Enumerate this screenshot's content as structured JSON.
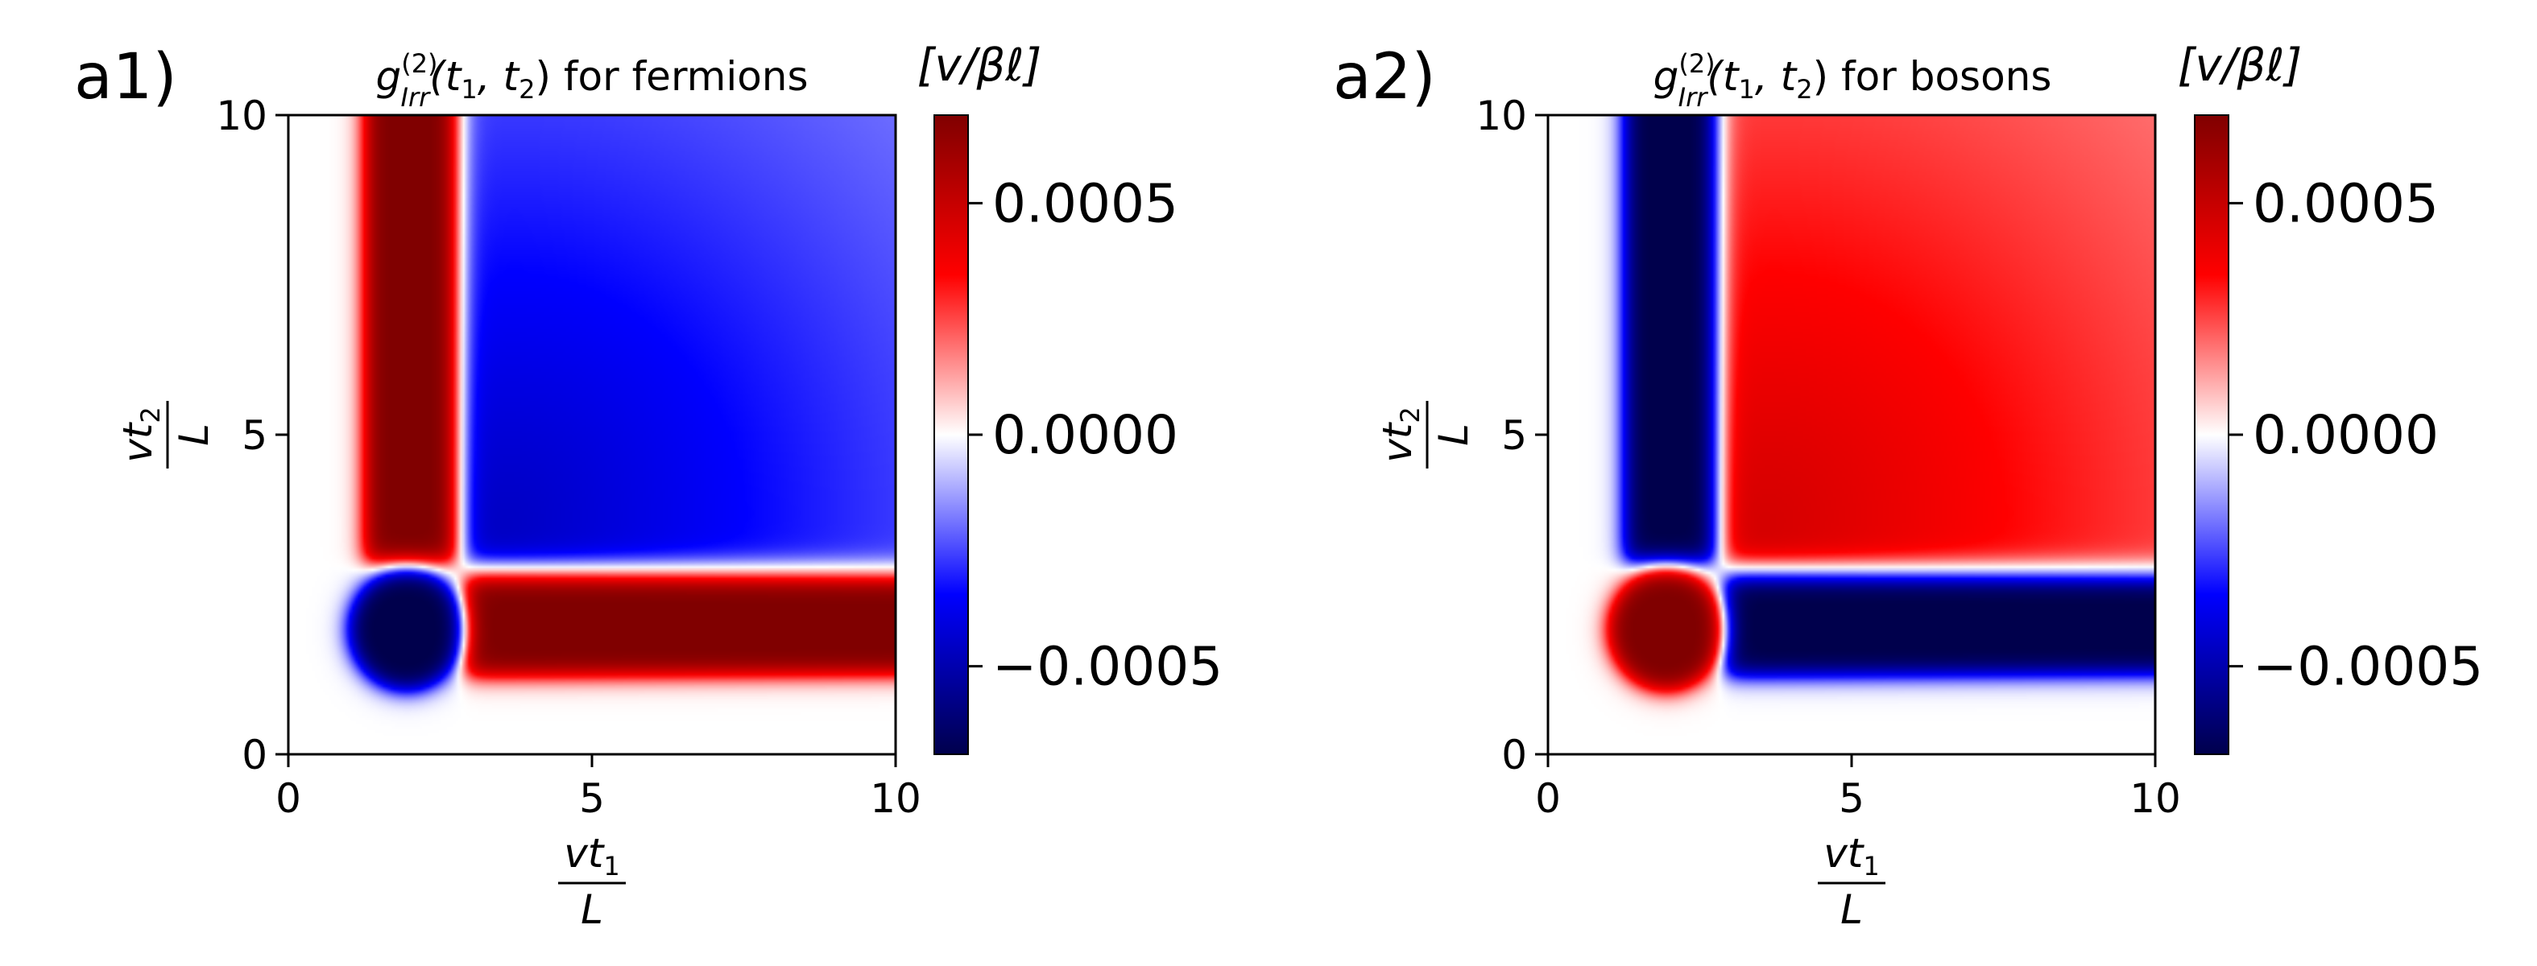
{
  "chart_data": [
    {
      "type": "heatmap",
      "panel_label": "a1)",
      "title": {
        "lead": "g",
        "sub": "Irr",
        "sup": "(2)",
        "args": "(t",
        "i1": "1",
        "comma": ", t",
        "i2": "2",
        "tail": ") for fermions"
      },
      "xlabel": {
        "num": "vt",
        "num_sub": "1",
        "den": "L"
      },
      "ylabel": {
        "num": "vt",
        "num_sub": "2",
        "den": "L"
      },
      "xlim": [
        0,
        10
      ],
      "ylim": [
        0,
        10
      ],
      "xticks": [
        {
          "v": 0,
          "label": "0"
        },
        {
          "v": 5,
          "label": "5"
        },
        {
          "v": 10,
          "label": "10"
        }
      ],
      "yticks": [
        {
          "v": 0,
          "label": "0"
        },
        {
          "v": 5,
          "label": "5"
        },
        {
          "v": 10,
          "label": "10"
        }
      ],
      "colormap": "seismic",
      "sign": 1,
      "vlim": [
        -0.00069,
        0.00069
      ],
      "colorbar": {
        "unit": "[v/βℓ]",
        "ticks": [
          {
            "v": 0.0005,
            "label": "0.0005"
          },
          {
            "v": 0.0,
            "label": "0.0000"
          },
          {
            "v": -0.0005,
            "label": "−0.0005"
          }
        ]
      },
      "regions": [
        {
          "shape": "rect",
          "x": [
            1.25,
            2.75
          ],
          "y": [
            3.0,
            10.0
          ],
          "value": 0.0007
        },
        {
          "shape": "rect",
          "x": [
            2.9,
            10.0
          ],
          "y": [
            1.25,
            2.75
          ],
          "value": 0.0007
        },
        {
          "shape": "disc",
          "center": [
            1.95,
            1.95
          ],
          "radius": 0.95,
          "value": -0.0007
        },
        {
          "shape": "plateau",
          "x": [
            2.9,
            10.0
          ],
          "y": [
            3.0,
            10.0
          ],
          "value": -0.00045
        }
      ]
    },
    {
      "type": "heatmap",
      "panel_label": "a2)",
      "title": {
        "lead": "g",
        "sub": "Irr",
        "sup": "(2)",
        "args": "(t",
        "i1": "1",
        "comma": ", t",
        "i2": "2",
        "tail": ") for bosons"
      },
      "xlabel": {
        "num": "vt",
        "num_sub": "1",
        "den": "L"
      },
      "ylabel": {
        "num": "vt",
        "num_sub": "2",
        "den": "L"
      },
      "xlim": [
        0,
        10
      ],
      "ylim": [
        0,
        10
      ],
      "xticks": [
        {
          "v": 0,
          "label": "0"
        },
        {
          "v": 5,
          "label": "5"
        },
        {
          "v": 10,
          "label": "10"
        }
      ],
      "yticks": [
        {
          "v": 0,
          "label": "0"
        },
        {
          "v": 5,
          "label": "5"
        },
        {
          "v": 10,
          "label": "10"
        }
      ],
      "colormap": "seismic",
      "sign": -1,
      "vlim": [
        -0.00069,
        0.00069
      ],
      "colorbar": {
        "unit": "[v/βℓ]",
        "ticks": [
          {
            "v": 0.0005,
            "label": "0.0005"
          },
          {
            "v": 0.0,
            "label": "0.0000"
          },
          {
            "v": -0.0005,
            "label": "−0.0005"
          }
        ]
      },
      "regions": [
        {
          "shape": "rect",
          "x": [
            1.25,
            2.75
          ],
          "y": [
            3.0,
            10.0
          ],
          "value": -0.0007
        },
        {
          "shape": "rect",
          "x": [
            2.9,
            10.0
          ],
          "y": [
            1.25,
            2.75
          ],
          "value": -0.0007
        },
        {
          "shape": "disc",
          "center": [
            1.95,
            1.95
          ],
          "radius": 0.95,
          "value": 0.0007
        },
        {
          "shape": "plateau",
          "x": [
            2.9,
            10.0
          ],
          "y": [
            3.0,
            10.0
          ],
          "value": 0.00045
        }
      ]
    }
  ]
}
